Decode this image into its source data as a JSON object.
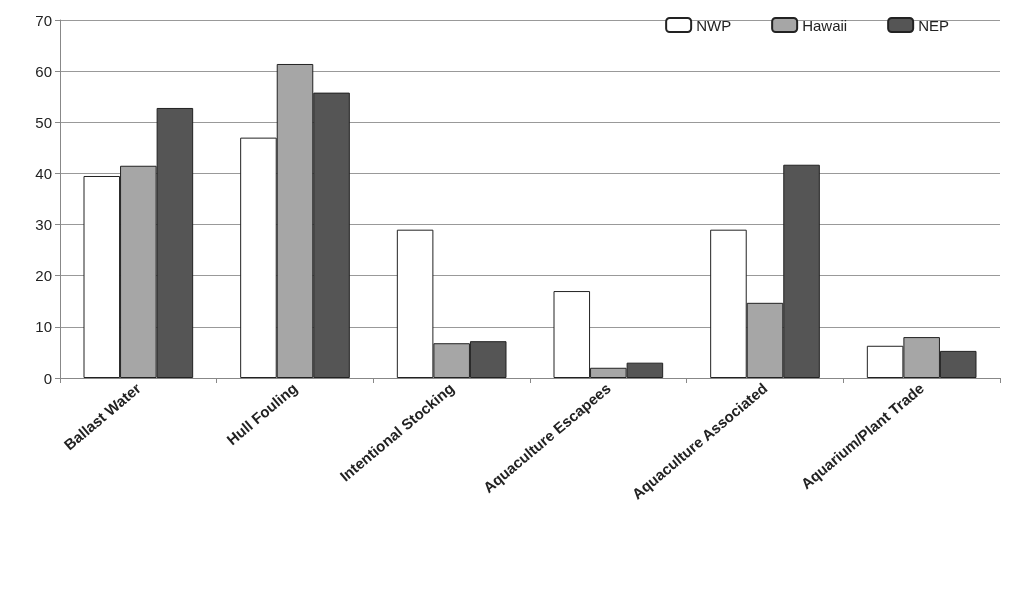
{
  "chart_data": {
    "type": "bar",
    "categories": [
      "Ballast Water",
      "Hull Fouling",
      "Intentional Stocking",
      "Aquaculture Escapees",
      "Aquaculture Associated",
      "Aquarium/Plant Trade"
    ],
    "series": [
      {
        "name": "NWP",
        "color": "#ffffff",
        "values": [
          39.5,
          47,
          29,
          17,
          29,
          6.3
        ]
      },
      {
        "name": "Hawaii",
        "color": "#a6a6a6",
        "values": [
          41.5,
          61.4,
          6.8,
          2,
          14.7,
          8
        ]
      },
      {
        "name": "NEP",
        "color": "#555555",
        "values": [
          52.8,
          55.8,
          7.2,
          3,
          41.7,
          5.3
        ]
      }
    ],
    "ylim": [
      0,
      70
    ],
    "yticks": [
      0,
      10,
      20,
      30,
      40,
      50,
      60,
      70
    ],
    "grid": "y",
    "legend": "top right"
  }
}
